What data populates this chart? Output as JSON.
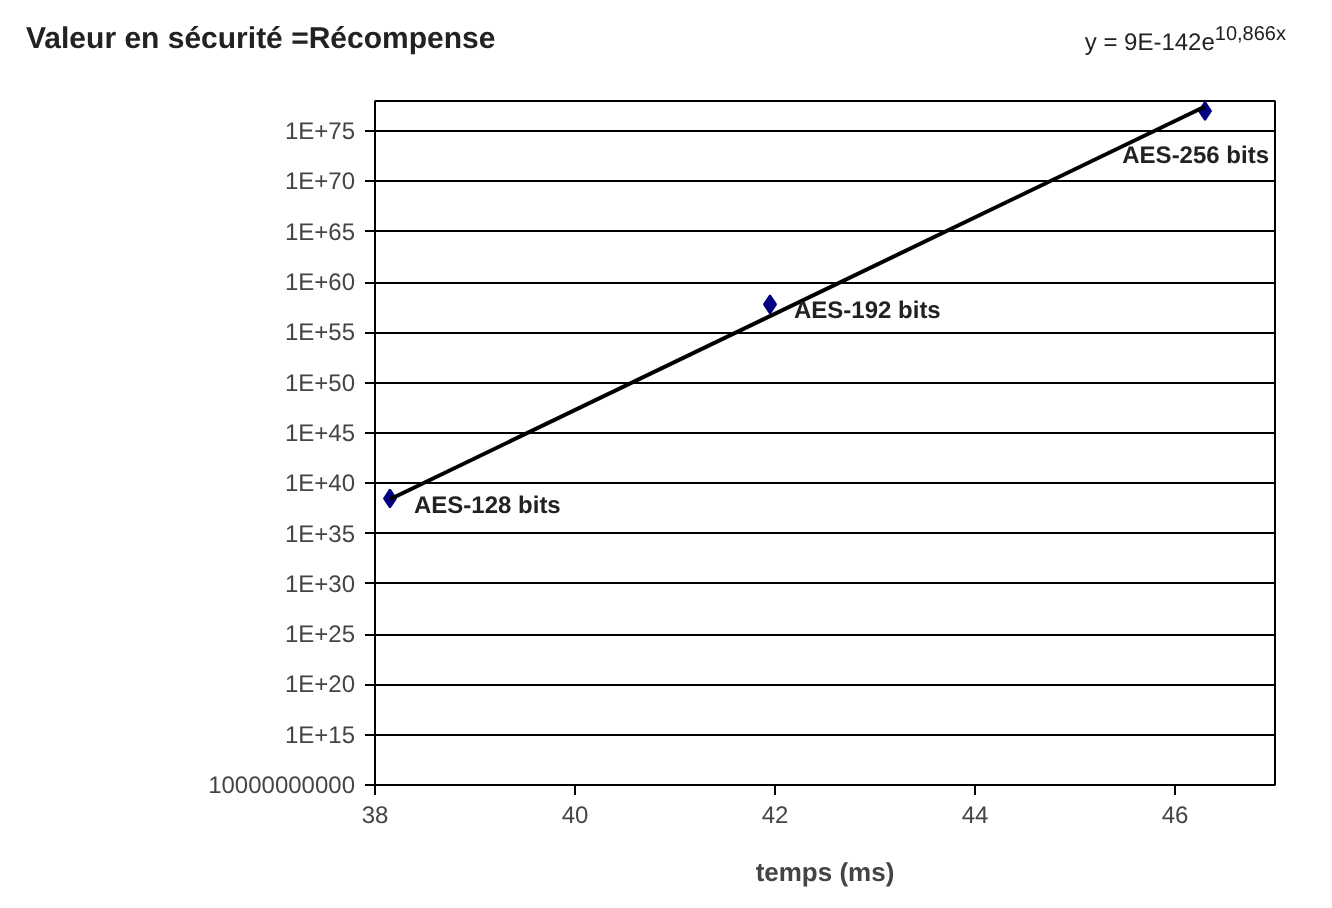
{
  "chart_data": {
    "type": "scatter",
    "title": "Valeur en sécurité =Récompense",
    "xlabel": "temps (ms)",
    "log": "y",
    "grid": "y",
    "marker": "diamond",
    "xlim": [
      38,
      47
    ],
    "xticks": [
      38,
      40,
      42,
      44,
      46
    ],
    "ylim": [
      10000000000.0,
      1e+78
    ],
    "yticks": [
      {
        "value": 10000000000.0,
        "label": "10000000000"
      },
      {
        "value": 1000000000000000.0,
        "label": "1E+15"
      },
      {
        "value": 1e+20,
        "label": "1E+20"
      },
      {
        "value": 1e+25,
        "label": "1E+25"
      },
      {
        "value": 1e+30,
        "label": "1E+30"
      },
      {
        "value": 1e+35,
        "label": "1E+35"
      },
      {
        "value": 1e+40,
        "label": "1E+40"
      },
      {
        "value": 1e+45,
        "label": "1E+45"
      },
      {
        "value": 1e+50,
        "label": "1E+50"
      },
      {
        "value": 1e+55,
        "label": "1E+55"
      },
      {
        "value": 1e+60,
        "label": "1E+60"
      },
      {
        "value": 1e+65,
        "label": "1E+65"
      },
      {
        "value": 1e+70,
        "label": "1E+70"
      },
      {
        "value": 1e+75,
        "label": "1E+75"
      }
    ],
    "series": [
      {
        "color": "#000080",
        "x": [
          38.15,
          41.95,
          46.3
        ],
        "values": [
          3e+38,
          6e+57,
          1e+77
        ]
      },
      {
        "type": "line",
        "marker": "none",
        "color": "#000000",
        "x": [
          38.15,
          46.3
        ],
        "values": [
          2.6e+38,
          2.8e+77
        ]
      }
    ],
    "annotations": [
      "y = 9E-142e$^{10,866x}$",
      {
        "text": "AES-128 bits",
        "x": 38.15,
        "y": 3e+38
      },
      {
        "text": "AES-192 bits",
        "x": 41.95,
        "y": 6e+57
      },
      {
        "text": "AES-256 bits",
        "x": 46.3,
        "y": 1e+77
      }
    ]
  }
}
